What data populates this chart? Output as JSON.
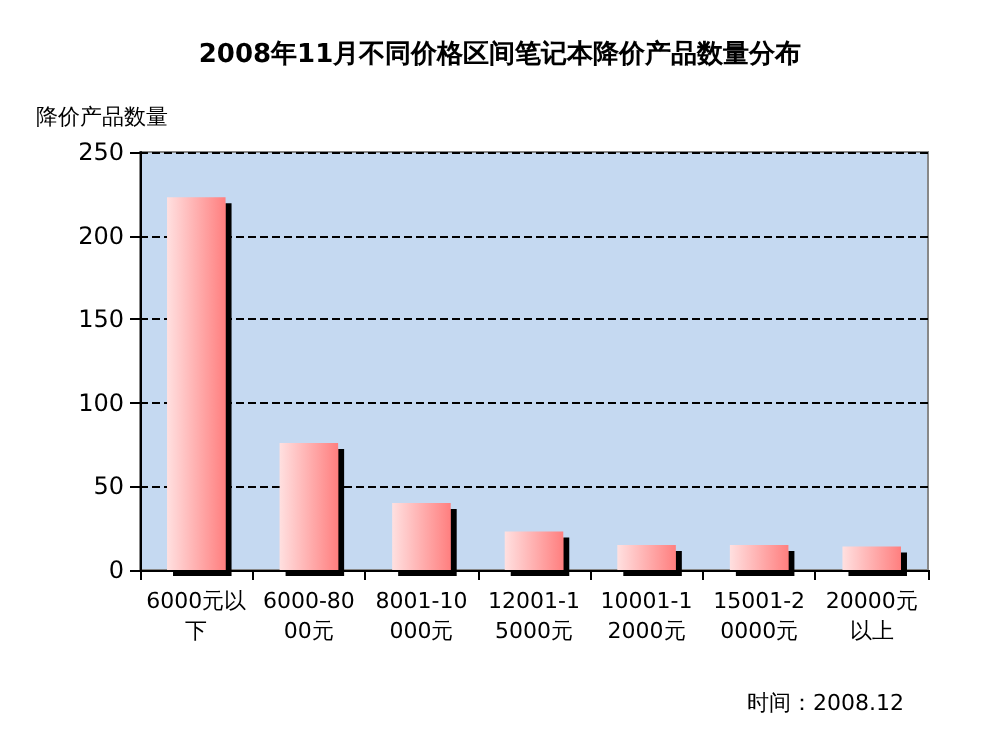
{
  "chart_data": {
    "type": "bar",
    "title": "2008年11月不同价格区间笔记本降价产品数量分布",
    "ylabel": "降价产品数量",
    "categories": [
      "6000元以下",
      "6000-8000元",
      "8001-10000元",
      "12001-15000元",
      "10001-12000元",
      "15001-20000元",
      "20000元以上"
    ],
    "values": [
      223,
      76,
      40,
      23,
      15,
      15,
      14
    ],
    "color": "#ff7f7f",
    "ylim": [
      0,
      250
    ],
    "yticks": [
      0,
      50,
      100,
      150,
      200,
      250
    ],
    "grid": "y",
    "annotations": [
      "时间：2008.12"
    ]
  }
}
